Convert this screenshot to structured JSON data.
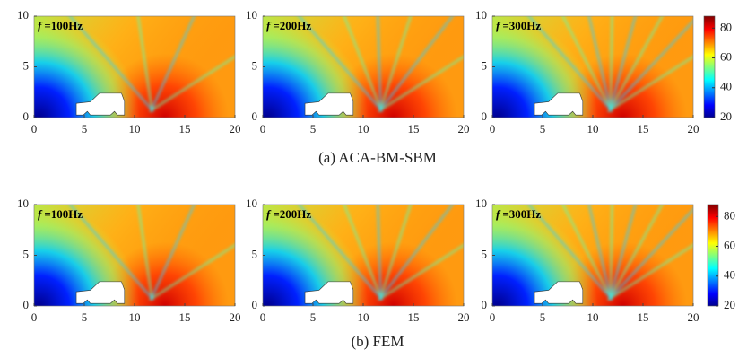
{
  "captions": [
    "(a) ACA-BM-SBM",
    "(b) FEM"
  ],
  "chart_data": [
    {
      "type": "heatmap",
      "label_symbol": "f",
      "label_text": "=100Hz",
      "colormap": "jet",
      "xlim": [
        0,
        20
      ],
      "ylim": [
        0,
        10
      ],
      "xticks": [
        0,
        5,
        10,
        15,
        20
      ],
      "yticks": [
        0,
        5,
        10
      ]
    },
    {
      "type": "heatmap",
      "label_symbol": "f",
      "label_text": "=200Hz",
      "colormap": "jet",
      "xlim": [
        0,
        20
      ],
      "ylim": [
        0,
        10
      ],
      "xticks": [
        0,
        5,
        10,
        15,
        20
      ],
      "yticks": [
        0,
        5,
        10
      ]
    },
    {
      "type": "heatmap",
      "label_symbol": "f",
      "label_text": "=300Hz",
      "colormap": "jet",
      "xlim": [
        0,
        20
      ],
      "ylim": [
        0,
        10
      ],
      "xticks": [
        0,
        5,
        10,
        15,
        20
      ],
      "yticks": [
        0,
        5,
        10
      ],
      "colorbar": {
        "lim": [
          20,
          88
        ],
        "ticks": [
          20,
          40,
          60,
          80
        ]
      }
    },
    {
      "type": "heatmap",
      "label_symbol": "f",
      "label_text": "=100Hz",
      "colormap": "jet",
      "xlim": [
        0,
        20
      ],
      "ylim": [
        0,
        10
      ],
      "xticks": [
        0,
        5,
        10,
        15,
        20
      ],
      "yticks": [
        0,
        5,
        10
      ]
    },
    {
      "type": "heatmap",
      "label_symbol": "f",
      "label_text": "=200Hz",
      "colormap": "jet",
      "xlim": [
        0,
        20
      ],
      "ylim": [
        0,
        10
      ],
      "xticks": [
        0,
        5,
        10,
        15,
        20
      ],
      "yticks": [
        0,
        5,
        10
      ]
    },
    {
      "type": "heatmap",
      "label_symbol": "f",
      "label_text": "=300Hz",
      "colormap": "jet",
      "xlim": [
        0,
        20
      ],
      "ylim": [
        0,
        10
      ],
      "xticks": [
        0,
        5,
        10,
        15,
        20
      ],
      "yticks": [
        0,
        5,
        10
      ],
      "colorbar": {
        "lim": [
          20,
          88
        ],
        "ticks": [
          20,
          40,
          60,
          80
        ]
      }
    }
  ]
}
